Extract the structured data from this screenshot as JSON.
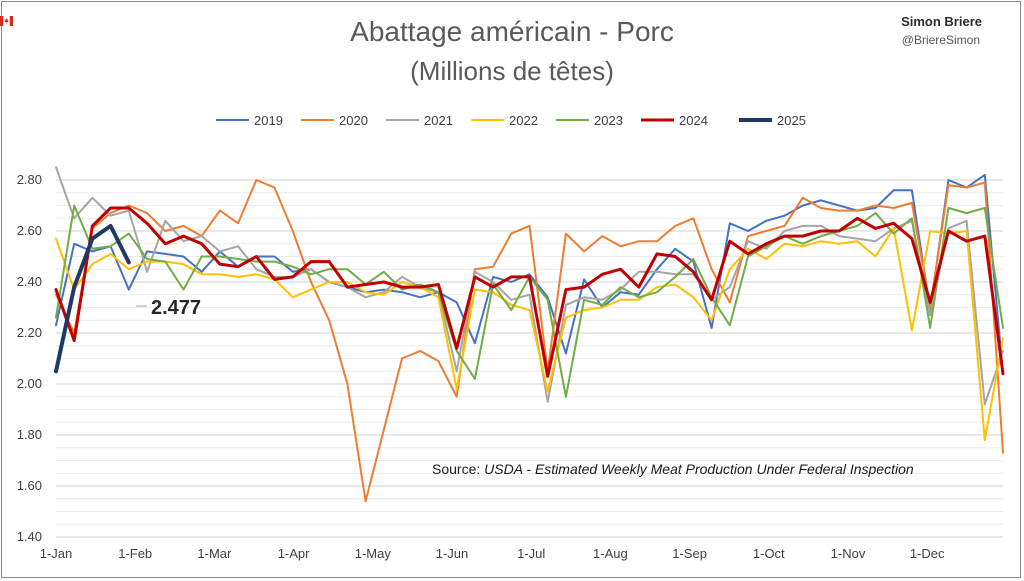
{
  "header": {
    "author": "Simon Briere",
    "handle": "@BriereSimon",
    "flag_icon": "canada-flag-icon"
  },
  "chart_data": {
    "type": "line",
    "title": "Abattage américain - Porc",
    "subtitle": "(Millions de têtes)",
    "ylim": [
      1.4,
      2.8
    ],
    "yticks": [
      "1.40",
      "1.60",
      "1.80",
      "2.00",
      "2.20",
      "2.40",
      "2.60",
      "2.80"
    ],
    "xticks": [
      "1-Jan",
      "1-Feb",
      "1-Mar",
      "1-Apr",
      "1-May",
      "1-Jun",
      "1-Jul",
      "1-Aug",
      "1-Sep",
      "1-Oct",
      "1-Nov",
      "1-Dec"
    ],
    "grid": true,
    "legend_position": "top",
    "annotation": "2.477",
    "source": {
      "prefix": "Source: ",
      "italic": "USDA - Estimated Weekly Meat Production Under Federal Inspection"
    },
    "series": [
      {
        "name": "2019",
        "color": "#4472c4",
        "width": 2,
        "values": [
          2.23,
          2.55,
          2.52,
          2.54,
          2.37,
          2.52,
          2.51,
          2.5,
          2.44,
          2.52,
          2.46,
          2.5,
          2.5,
          2.44,
          2.45,
          2.4,
          2.38,
          2.36,
          2.37,
          2.36,
          2.34,
          2.36,
          2.32,
          2.16,
          2.42,
          2.4,
          2.43,
          2.34,
          2.12,
          2.41,
          2.3,
          2.36,
          2.35,
          2.45,
          2.53,
          2.48,
          2.22,
          2.63,
          2.6,
          2.64,
          2.66,
          2.7,
          2.72,
          2.7,
          2.68,
          2.69,
          2.76,
          2.76,
          2.29,
          2.8,
          2.77,
          2.82,
          2.04
        ]
      },
      {
        "name": "2020",
        "color": "#ed7d31",
        "width": 2,
        "values": [
          2.35,
          2.2,
          2.61,
          2.67,
          2.7,
          2.67,
          2.6,
          2.62,
          2.58,
          2.68,
          2.63,
          2.8,
          2.77,
          2.6,
          2.4,
          2.25,
          2.0,
          1.54,
          1.82,
          2.1,
          2.13,
          2.09,
          1.95,
          2.45,
          2.46,
          2.59,
          2.62,
          2.05,
          2.59,
          2.52,
          2.58,
          2.54,
          2.56,
          2.56,
          2.62,
          2.65,
          2.45,
          2.32,
          2.58,
          2.6,
          2.62,
          2.73,
          2.69,
          2.68,
          2.68,
          2.7,
          2.69,
          2.71,
          2.3,
          2.78,
          2.77,
          2.79,
          1.73
        ]
      },
      {
        "name": "2021",
        "color": "#a5a5a5",
        "width": 2,
        "values": [
          2.85,
          2.65,
          2.73,
          2.66,
          2.68,
          2.44,
          2.64,
          2.56,
          2.58,
          2.52,
          2.54,
          2.45,
          2.42,
          2.42,
          2.45,
          2.4,
          2.38,
          2.34,
          2.36,
          2.42,
          2.38,
          2.36,
          2.05,
          2.44,
          2.4,
          2.33,
          2.35,
          1.93,
          2.31,
          2.34,
          2.33,
          2.37,
          2.44,
          2.44,
          2.43,
          2.43,
          2.33,
          2.38,
          2.56,
          2.53,
          2.6,
          2.62,
          2.62,
          2.58,
          2.57,
          2.56,
          2.61,
          2.64,
          2.27,
          2.61,
          2.64,
          1.92,
          2.13
        ]
      },
      {
        "name": "2022",
        "color": "#ffc000",
        "width": 2,
        "values": [
          2.57,
          2.37,
          2.47,
          2.51,
          2.45,
          2.48,
          2.48,
          2.47,
          2.43,
          2.43,
          2.42,
          2.43,
          2.41,
          2.34,
          2.37,
          2.4,
          2.4,
          2.36,
          2.35,
          2.4,
          2.38,
          2.34,
          1.98,
          2.37,
          2.36,
          2.31,
          2.29,
          1.97,
          2.26,
          2.29,
          2.3,
          2.33,
          2.33,
          2.38,
          2.39,
          2.34,
          2.25,
          2.45,
          2.53,
          2.49,
          2.55,
          2.54,
          2.56,
          2.55,
          2.56,
          2.5,
          2.61,
          2.21,
          2.6,
          2.59,
          2.6,
          1.78,
          2.18
        ]
      },
      {
        "name": "2023",
        "color": "#70ad47",
        "width": 2,
        "values": [
          2.26,
          2.7,
          2.53,
          2.54,
          2.59,
          2.49,
          2.48,
          2.37,
          2.5,
          2.5,
          2.49,
          2.48,
          2.48,
          2.46,
          2.43,
          2.45,
          2.45,
          2.39,
          2.44,
          2.37,
          2.39,
          2.36,
          2.13,
          2.02,
          2.39,
          2.29,
          2.42,
          2.33,
          1.95,
          2.33,
          2.31,
          2.38,
          2.34,
          2.36,
          2.42,
          2.49,
          2.34,
          2.23,
          2.5,
          2.54,
          2.58,
          2.55,
          2.58,
          2.6,
          2.62,
          2.67,
          2.59,
          2.65,
          2.22,
          2.69,
          2.67,
          2.69,
          2.22
        ]
      },
      {
        "name": "2024",
        "color": "#c00000",
        "width": 3,
        "values": [
          2.37,
          2.17,
          2.62,
          2.69,
          2.69,
          2.63,
          2.55,
          2.58,
          2.55,
          2.47,
          2.46,
          2.5,
          2.41,
          2.42,
          2.48,
          2.48,
          2.38,
          2.39,
          2.4,
          2.38,
          2.38,
          2.39,
          2.14,
          2.42,
          2.38,
          2.42,
          2.42,
          2.03,
          2.37,
          2.38,
          2.43,
          2.45,
          2.38,
          2.51,
          2.5,
          2.44,
          2.33,
          2.56,
          2.51,
          2.55,
          2.58,
          2.58,
          2.6,
          2.6,
          2.65,
          2.61,
          2.63,
          2.57,
          2.32,
          2.6,
          2.56,
          2.58,
          2.04
        ]
      },
      {
        "name": "2025",
        "color": "#1f3864",
        "width": 4,
        "values": [
          2.05,
          2.38,
          2.57,
          2.62,
          2.477
        ]
      }
    ]
  }
}
